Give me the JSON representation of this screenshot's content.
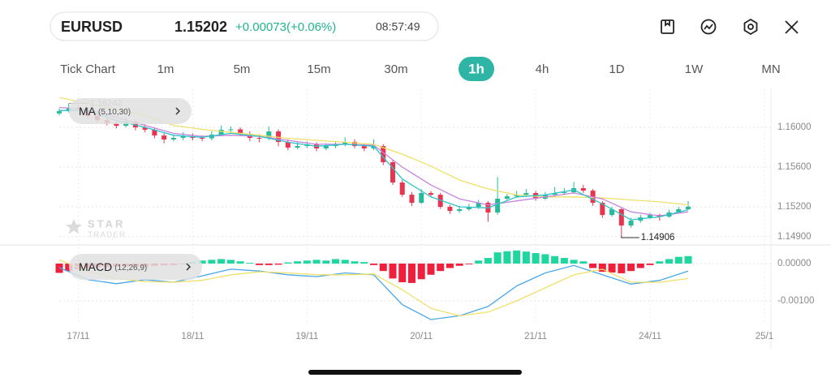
{
  "header": {
    "symbol": "EURUSD",
    "price": "1.15202",
    "change": "+0.00073(+0.06%)",
    "time": "08:57:49"
  },
  "timeframes": [
    "Tick Chart",
    "1m",
    "5m",
    "15m",
    "30m",
    "1h",
    "4h",
    "1D",
    "1W",
    "MN"
  ],
  "selected_timeframe": 5,
  "watermark": {
    "brand": "STAR",
    "sub": "TRADER"
  },
  "chart_data": [
    {
      "type": "candlestick",
      "indicator": "MA",
      "indicator_params": "(5,10,30)",
      "up_color": "#26b99a",
      "down_color": "#e8344e",
      "xlim": [
        0,
        66
      ],
      "ylim": [
        1.14833,
        1.16384
      ],
      "yticks": [
        {
          "value": 1.16,
          "label": "1.16000"
        },
        {
          "value": 1.156,
          "label": "1.15600"
        },
        {
          "value": 1.152,
          "label": "1.15200"
        },
        {
          "value": 1.149,
          "label": "1.14900"
        }
      ],
      "xticks": [
        {
          "value": 2,
          "label": "17/11"
        },
        {
          "value": 14,
          "label": "18/11"
        },
        {
          "value": 26,
          "label": "19/11"
        },
        {
          "value": 38,
          "label": "20/11"
        },
        {
          "value": 50,
          "label": "21/11"
        },
        {
          "value": 62,
          "label": "24/11"
        },
        {
          "value": 74,
          "label": "25/1"
        }
      ],
      "grid": true,
      "ohlc": [
        [
          1.1614,
          1.1619,
          1.1612,
          1.16163
        ],
        [
          1.16163,
          1.16242,
          1.1615,
          1.16196
        ],
        [
          1.16196,
          1.1622,
          1.1616,
          1.1618
        ],
        [
          1.1618,
          1.162,
          1.1609,
          1.16114
        ],
        [
          1.16114,
          1.1614,
          1.1605,
          1.16073
        ],
        [
          1.16073,
          1.161,
          1.1602,
          1.16041
        ],
        [
          1.16041,
          1.1607,
          1.1599,
          1.16016
        ],
        [
          1.16016,
          1.161,
          1.16,
          1.16057
        ],
        [
          1.16057,
          1.1608,
          1.1597,
          1.16
        ],
        [
          1.16,
          1.1603,
          1.1595,
          1.15976
        ],
        [
          1.15976,
          1.16,
          1.1589,
          1.15918
        ],
        [
          1.15918,
          1.1594,
          1.1584,
          1.15878
        ],
        [
          1.15878,
          1.1593,
          1.1586,
          1.15894
        ],
        [
          1.15894,
          1.1595,
          1.1587,
          1.1591
        ],
        [
          1.1591,
          1.1594,
          1.1587,
          1.15894
        ],
        [
          1.15894,
          1.1592,
          1.1586,
          1.1589
        ],
        [
          1.1589,
          1.1596,
          1.1587,
          1.15927
        ],
        [
          1.15927,
          1.1602,
          1.1591,
          1.15976
        ],
        [
          1.15976,
          1.1601,
          1.1595,
          1.1598
        ],
        [
          1.1598,
          1.16,
          1.1591,
          1.15935
        ],
        [
          1.15935,
          1.1596,
          1.1586,
          1.15894
        ],
        [
          1.15894,
          1.1593,
          1.1585,
          1.1589
        ],
        [
          1.1589,
          1.1601,
          1.1587,
          1.15959
        ],
        [
          1.15959,
          1.1598,
          1.1581,
          1.15853
        ],
        [
          1.15853,
          1.1588,
          1.1577,
          1.15796
        ],
        [
          1.15796,
          1.1585,
          1.1578,
          1.15812
        ],
        [
          1.15812,
          1.1586,
          1.1579,
          1.15829
        ],
        [
          1.15829,
          1.1585,
          1.1576,
          1.15788
        ],
        [
          1.15788,
          1.1584,
          1.1577,
          1.15812
        ],
        [
          1.15812,
          1.1586,
          1.1579,
          1.15829
        ],
        [
          1.15829,
          1.159,
          1.1581,
          1.15853
        ],
        [
          1.15853,
          1.1588,
          1.1579,
          1.15812
        ],
        [
          1.15812,
          1.1584,
          1.1576,
          1.15788
        ],
        [
          1.15788,
          1.1588,
          1.1577,
          1.15812
        ],
        [
          1.15812,
          1.1583,
          1.1562,
          1.15649
        ],
        [
          1.15649,
          1.1567,
          1.1542,
          1.15445
        ],
        [
          1.15445,
          1.1547,
          1.153,
          1.15322
        ],
        [
          1.15322,
          1.1535,
          1.1521,
          1.15241
        ],
        [
          1.15241,
          1.1538,
          1.1523,
          1.15339
        ],
        [
          1.15339,
          1.1536,
          1.153,
          1.15322
        ],
        [
          1.15322,
          1.1534,
          1.1518,
          1.152
        ],
        [
          1.152,
          1.1522,
          1.1513,
          1.15159
        ],
        [
          1.15159,
          1.1521,
          1.1514,
          1.15176
        ],
        [
          1.15176,
          1.1523,
          1.1516,
          1.152
        ],
        [
          1.152,
          1.1527,
          1.1518,
          1.15241
        ],
        [
          1.15241,
          1.1526,
          1.1505,
          1.15143
        ],
        [
          1.15143,
          1.155,
          1.1512,
          1.15282
        ],
        [
          1.15282,
          1.1533,
          1.1526,
          1.15306
        ],
        [
          1.15306,
          1.1536,
          1.1529,
          1.15322
        ],
        [
          1.15322,
          1.1538,
          1.153,
          1.15339
        ],
        [
          1.15339,
          1.1536,
          1.1526,
          1.15282
        ],
        [
          1.15282,
          1.1535,
          1.1527,
          1.15322
        ],
        [
          1.15322,
          1.154,
          1.153,
          1.15339
        ],
        [
          1.15339,
          1.1539,
          1.1532,
          1.15347
        ],
        [
          1.15347,
          1.1545,
          1.1533,
          1.15388
        ],
        [
          1.15388,
          1.1542,
          1.1534,
          1.15363
        ],
        [
          1.15363,
          1.1538,
          1.1521,
          1.15241
        ],
        [
          1.15241,
          1.1526,
          1.1509,
          1.15118
        ],
        [
          1.15118,
          1.152,
          1.151,
          1.15176
        ],
        [
          1.15176,
          1.1519,
          1.14906,
          1.15012
        ],
        [
          1.15012,
          1.1509,
          1.1499,
          1.15061
        ],
        [
          1.15061,
          1.1512,
          1.1504,
          1.15094
        ],
        [
          1.15094,
          1.1514,
          1.1508,
          1.15118
        ],
        [
          1.15118,
          1.1513,
          1.1506,
          1.15102
        ],
        [
          1.15102,
          1.1517,
          1.1509,
          1.15143
        ],
        [
          1.15143,
          1.152,
          1.1513,
          1.15176
        ],
        [
          1.15176,
          1.1526,
          1.1517,
          1.15202
        ]
      ],
      "x": [
        0,
        3,
        6,
        9,
        12,
        15,
        18,
        21,
        24,
        27,
        30,
        33,
        36,
        39,
        42,
        45,
        48,
        51,
        54,
        57,
        60,
        63,
        66
      ],
      "series": [
        {
          "color": "#efe06a",
          "values": [
            1.163,
            1.1624,
            1.1618,
            1.1612,
            1.1602,
            1.1598,
            1.1595,
            1.1592,
            1.1589,
            1.1587,
            1.1585,
            1.1583,
            1.1573,
            1.1561,
            1.1547,
            1.1538,
            1.1532,
            1.153,
            1.153,
            1.1529,
            1.1527,
            1.1525,
            1.1522
          ]
        },
        {
          "color": "#c884dc",
          "values": [
            1.162,
            1.1618,
            1.161,
            1.1602,
            1.1594,
            1.1591,
            1.1592,
            1.1591,
            1.1587,
            1.1583,
            1.1583,
            1.1582,
            1.156,
            1.1542,
            1.1528,
            1.1522,
            1.1526,
            1.153,
            1.1534,
            1.1528,
            1.1515,
            1.1511,
            1.1515
          ]
        },
        {
          "color": "#2ec4c8",
          "values": [
            1.1617,
            1.1617,
            1.1607,
            1.16,
            1.1592,
            1.159,
            1.1594,
            1.1591,
            1.1585,
            1.1581,
            1.1583,
            1.1581,
            1.1548,
            1.153,
            1.152,
            1.1519,
            1.153,
            1.1532,
            1.1537,
            1.1523,
            1.1507,
            1.151,
            1.1517
          ]
        }
      ]
    },
    {
      "type": "macd",
      "indicator": "MACD",
      "indicator_params": "(12,26,9)",
      "up_color": "#1fd6a0",
      "down_color": "#f0203c",
      "xlim": [
        0,
        66
      ],
      "ylim": [
        -0.00163,
        0.00039
      ],
      "yticks": [
        {
          "value": 0,
          "label": "0.00000"
        },
        {
          "value": -0.001,
          "label": "-0.00100"
        }
      ],
      "grid": true,
      "histogram": [
        -0.00025,
        -0.0002,
        -0.00015,
        -0.00012,
        -0.0001,
        -0.0001,
        -8e-05,
        -8e-05,
        -8e-05,
        -8e-05,
        -6e-05,
        -5e-05,
        -4e-05,
        -2e-05,
        4e-05,
        8e-05,
        0.0001,
        0.00012,
        0.0001,
        6e-05,
        2e-05,
        -4e-05,
        -4e-05,
        -3e-05,
        3e-05,
        6e-05,
        8e-05,
        0.0001,
        8e-05,
        0.00012,
        0.0001,
        6e-05,
        4e-05,
        -4e-05,
        -0.0002,
        -0.0004,
        -0.0005,
        -0.00052,
        -0.00042,
        -0.0003,
        -0.0002,
        -0.00012,
        -6e-05,
        -2e-05,
        8e-05,
        0.00015,
        0.0003,
        0.00033,
        0.00035,
        0.00032,
        0.00028,
        0.00025,
        0.0002,
        0.00015,
        0.0001,
        6e-05,
        -0.00012,
        -0.00022,
        -0.00024,
        -0.00026,
        -0.0002,
        -0.00012,
        -4e-05,
        6e-05,
        0.00012,
        0.00018,
        0.0002
      ],
      "x": [
        0,
        3,
        6,
        9,
        12,
        15,
        18,
        21,
        24,
        27,
        30,
        33,
        36,
        39,
        42,
        45,
        48,
        51,
        54,
        57,
        60,
        63,
        66
      ],
      "series": [
        {
          "color": "#4aa8e8",
          "values": [
            -0.00011,
            -0.00043,
            -0.00054,
            -0.00043,
            -0.0005,
            -0.00033,
            -0.00015,
            -0.0002,
            -0.0003,
            -0.00035,
            -0.00025,
            -0.0003,
            -0.0011,
            -0.0015,
            -0.0014,
            -0.00115,
            -0.0006,
            -0.00025,
            -5e-05,
            -0.0003,
            -0.00055,
            -0.00045,
            -0.0002
          ]
        },
        {
          "color": "#f0e06a",
          "values": [
            0.0001,
            -0.0002,
            -0.0004,
            -0.00048,
            -0.0005,
            -0.00045,
            -0.0003,
            -0.00022,
            -0.00025,
            -0.0003,
            -0.0003,
            -0.00028,
            -0.0007,
            -0.0012,
            -0.0014,
            -0.0013,
            -0.001,
            -0.00065,
            -0.0003,
            -0.00015,
            -0.0005,
            -0.0005,
            -0.0004
          ]
        }
      ]
    }
  ]
}
